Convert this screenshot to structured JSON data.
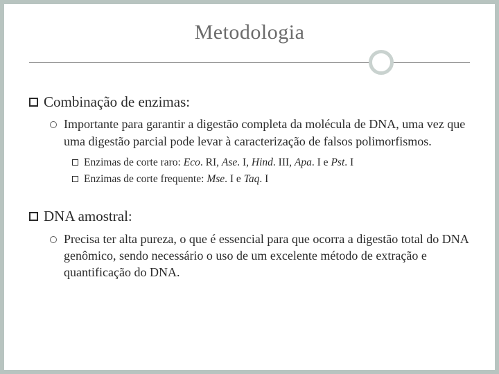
{
  "slide": {
    "title": "Metodologia",
    "background_color": "#b8c4c0",
    "slide_background": "#ffffff",
    "text_color": "#2a2a2a",
    "title_color": "#6b6b6b",
    "divider_circle_color": "#c9d2cf",
    "title_fontsize": 30,
    "level1_fontsize": 21,
    "level2_fontsize": 18,
    "level3_fontsize": 15.5
  },
  "section1": {
    "heading": "Combinação de enzimas:",
    "body": "Importante para garantir a digestão completa da molécula de DNA, uma vez que uma digestão parcial pode levar à caracterização de falsos polimorfismos.",
    "sub1_prefix": "Enzimas de corte raro: ",
    "sub1_enz1": "Eco",
    "sub1_enz1b": ". RI, ",
    "sub1_enz2": "Ase",
    "sub1_enz2b": ". I, ",
    "sub1_enz3": "Hind",
    "sub1_enz3b": ". III, ",
    "sub1_enz4": "Apa",
    "sub1_enz4b": ". I e ",
    "sub1_enz5": "Pst",
    "sub1_enz5b": ". I",
    "sub2_prefix": "Enzimas de corte frequente: ",
    "sub2_enz1": "Mse",
    "sub2_enz1b": ". I e ",
    "sub2_enz2": "Taq",
    "sub2_enz2b": ". I"
  },
  "section2": {
    "heading": "DNA amostral:",
    "body": "Precisa ter alta pureza, o que é essencial para que ocorra a digestão total do DNA genômico, sendo necessário o uso de um excelente método de extração e quantificação do DNA."
  }
}
